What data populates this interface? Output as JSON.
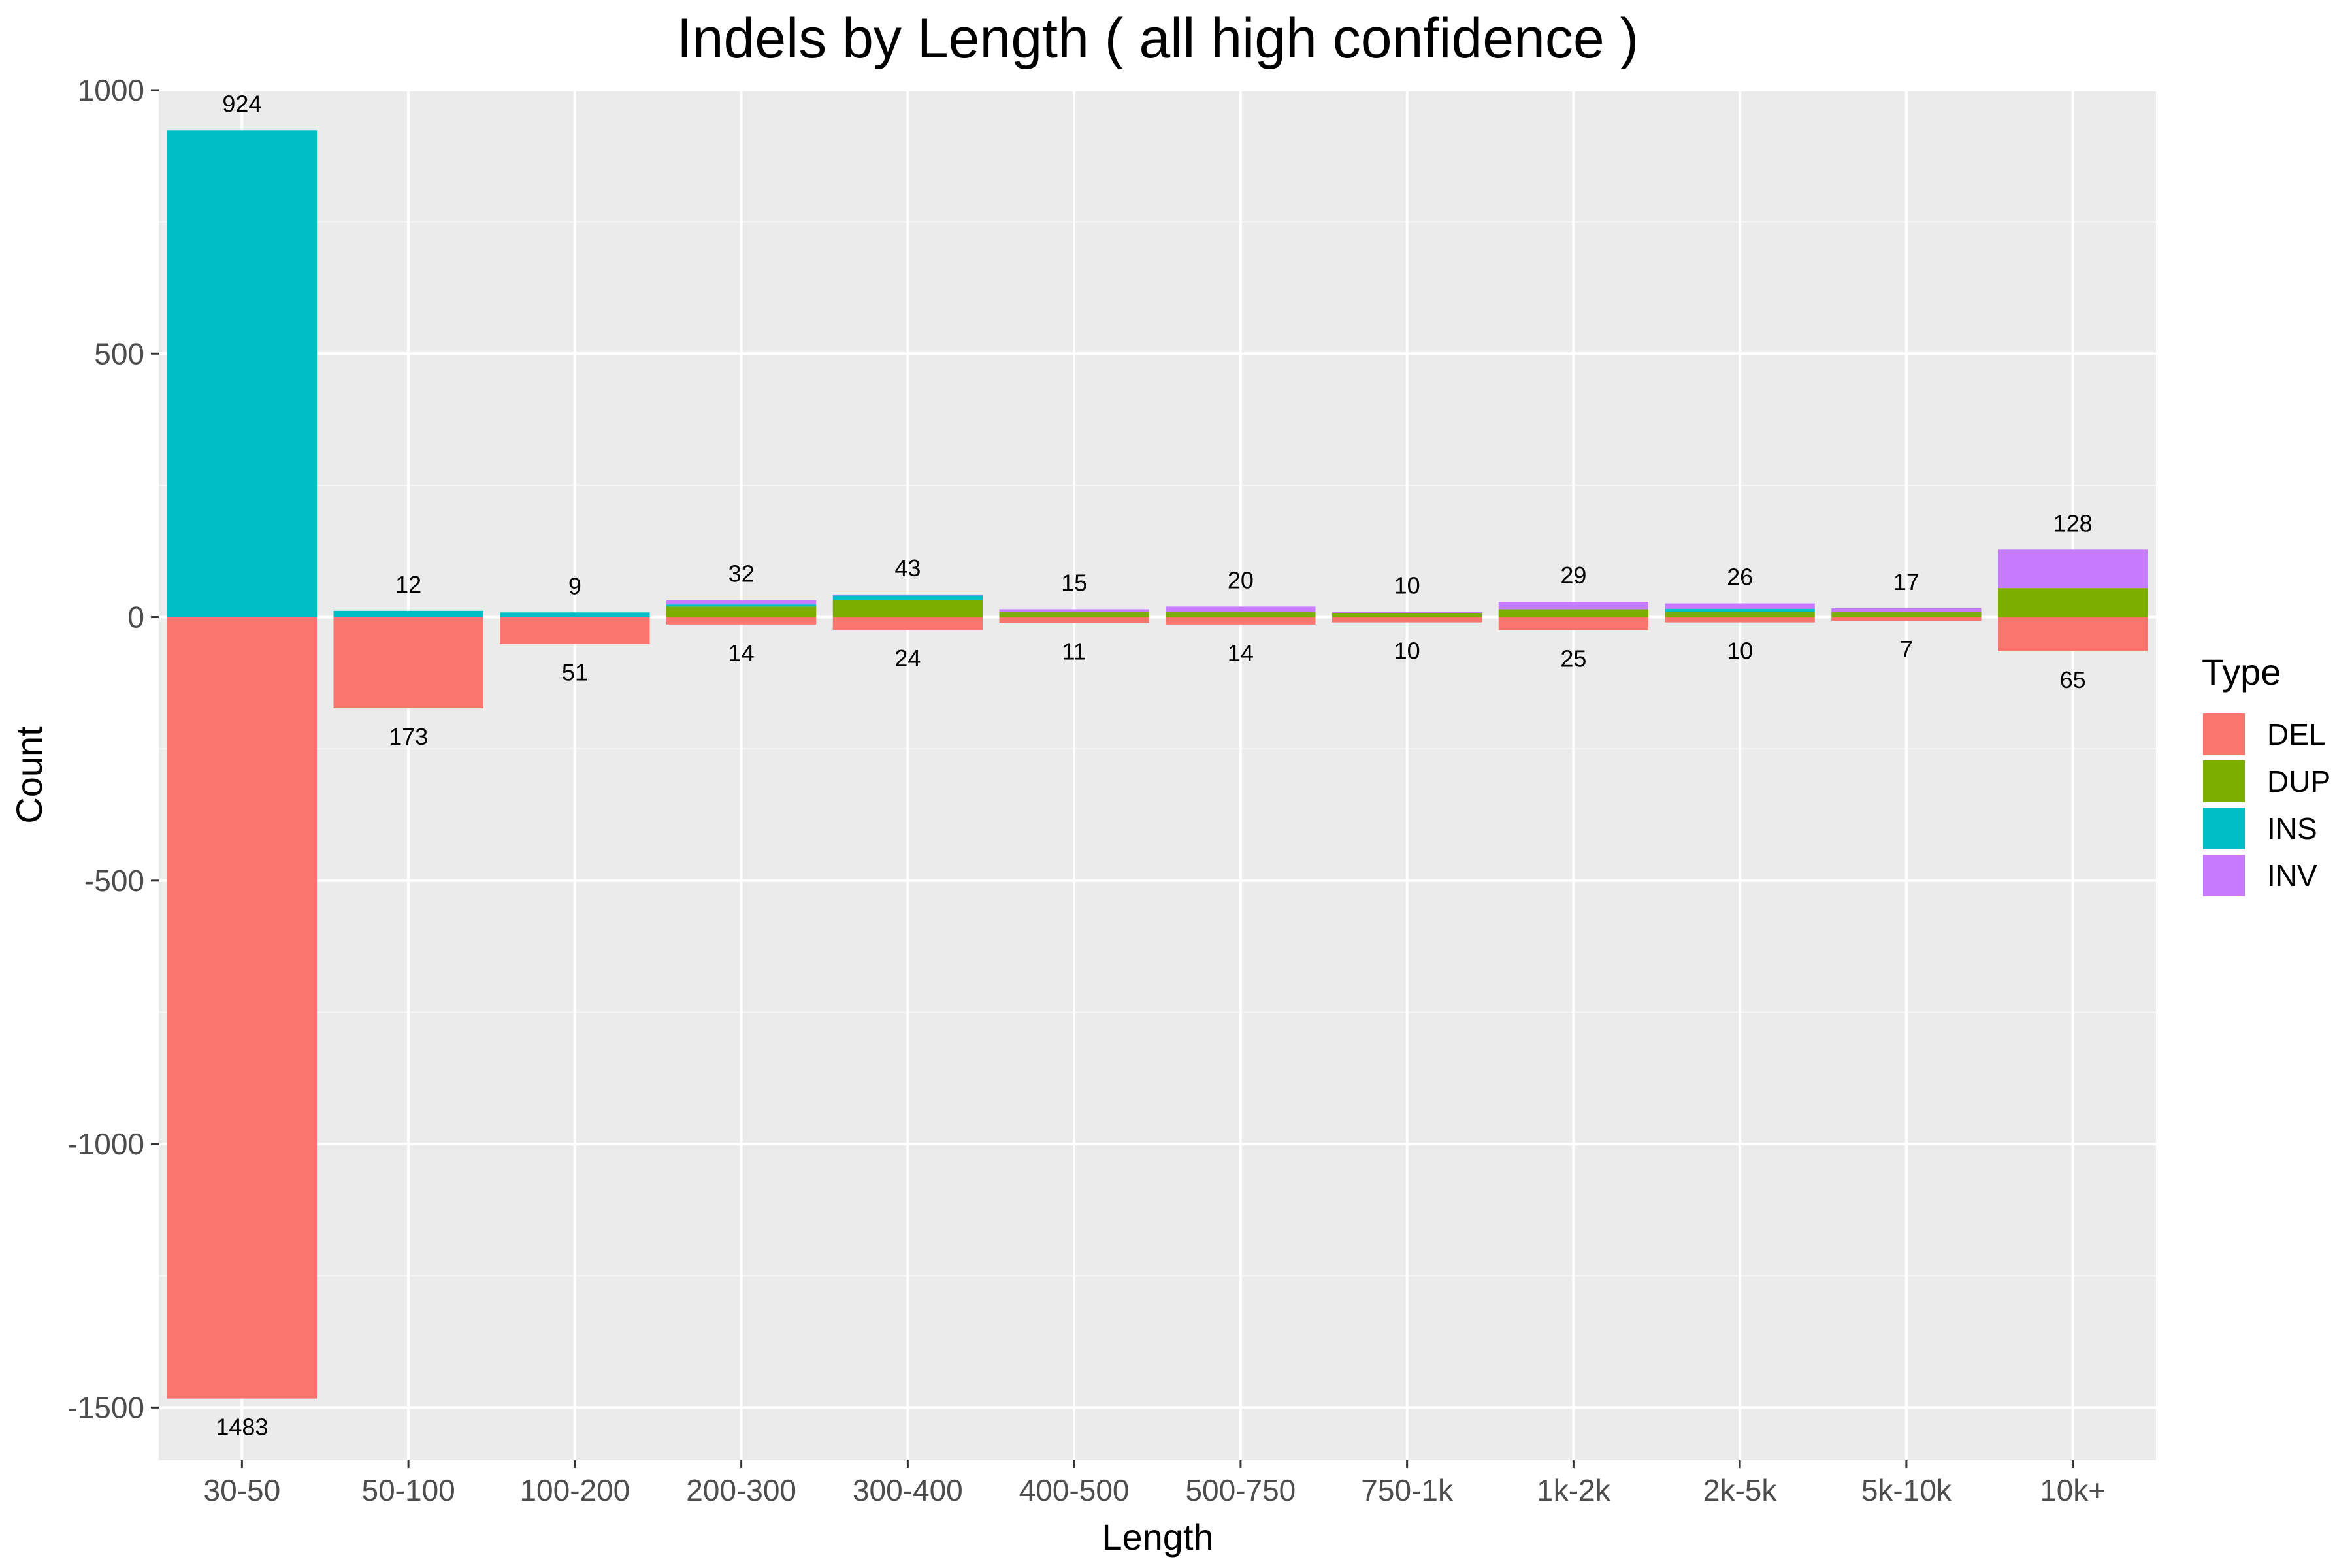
{
  "chart_data": {
    "type": "bar",
    "stacked": true,
    "title": "Indels by Length ( all high confidence )",
    "xlabel": "Length",
    "ylabel": "Count",
    "ylim": [
      -1600,
      1000
    ],
    "yticks": [
      1000,
      500,
      0,
      -500,
      -1000,
      -1500
    ],
    "ytick_labels": [
      "1000",
      "500",
      "0",
      "-500",
      "-1000",
      "-1500"
    ],
    "grid": true,
    "legend_position": "right",
    "legend_title": "Type",
    "categories": [
      "30-50",
      "50-100",
      "100-200",
      "200-300",
      "300-400",
      "400-500",
      "500-750",
      "750-1k",
      "1k-2k",
      "2k-5k",
      "5k-10k",
      "10k+"
    ],
    "series": [
      {
        "name": "DEL",
        "color": "#F8766D",
        "values": [
          -1483,
          -173,
          -51,
          -14,
          -24,
          -11,
          -14,
          -10,
          -25,
          -10,
          -7,
          -65
        ]
      },
      {
        "name": "DUP",
        "color": "#7CAE00",
        "values": [
          0,
          0,
          0,
          20,
          33,
          10,
          10,
          7,
          15,
          10,
          10,
          55
        ]
      },
      {
        "name": "INS",
        "color": "#00BFC4",
        "values": [
          924,
          12,
          9,
          4,
          8,
          0,
          0,
          0,
          0,
          6,
          0,
          0
        ]
      },
      {
        "name": "INV",
        "color": "#C77CFF",
        "values": [
          0,
          0,
          0,
          8,
          2,
          5,
          10,
          3,
          14,
          10,
          7,
          73
        ]
      }
    ],
    "positive_totals": [
      924,
      12,
      9,
      32,
      43,
      15,
      20,
      10,
      29,
      26,
      17,
      128
    ],
    "negative_totals": [
      1483,
      173,
      51,
      14,
      24,
      11,
      14,
      10,
      25,
      10,
      7,
      65
    ]
  }
}
